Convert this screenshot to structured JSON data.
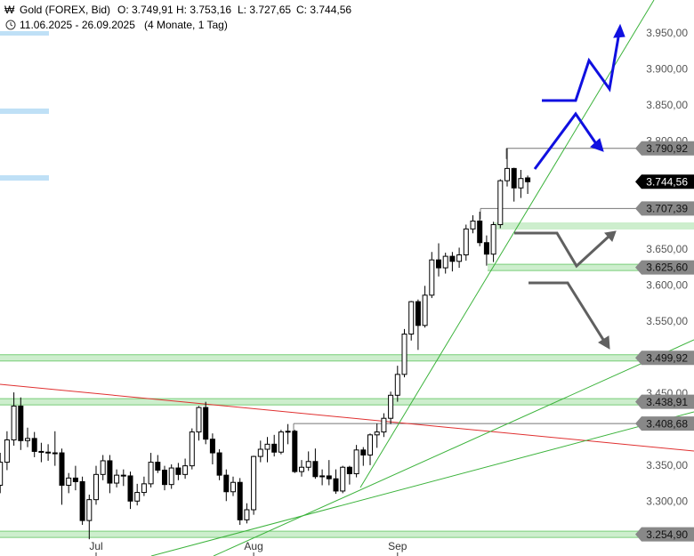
{
  "chart_data": {
    "type": "candlestick",
    "title": "Gold (FOREX, Bid)",
    "ohlc_labels": [
      "O: 3.749,91",
      "H: 3.753,16",
      "L: 3.727,65",
      "C: 3.744,56"
    ],
    "subtitle": "11.06.2025 - 26.09.2025",
    "period": "(4 Monate, 1 Tag)",
    "categories": [
      null,
      null,
      null,
      null,
      null,
      null,
      null,
      null,
      null,
      null,
      null,
      null,
      null,
      null,
      "Jul",
      null,
      null,
      null,
      null,
      null,
      null,
      null,
      null,
      null,
      null,
      null,
      null,
      null,
      null,
      null,
      null,
      null,
      null,
      null,
      null,
      null,
      null,
      "Aug",
      null,
      null,
      null,
      null,
      null,
      null,
      null,
      null,
      null,
      null,
      null,
      null,
      null,
      null,
      null,
      null,
      null,
      null,
      null,
      null,
      "Sep",
      null,
      null,
      null,
      null,
      null,
      null,
      null,
      null,
      null,
      null,
      null,
      null,
      null,
      null,
      null,
      null,
      null,
      null,
      null
    ],
    "open": [
      3323,
      3355,
      3386,
      3433,
      3385,
      3388,
      3370,
      3369,
      3368,
      3368,
      3323,
      3333,
      3328,
      3274,
      3303,
      3338,
      3357,
      3326,
      3337,
      3336,
      3301,
      3313,
      3325,
      3355,
      3344,
      3324,
      3347,
      3338,
      3350,
      3397,
      3431,
      3387,
      3368,
      3337,
      3314,
      3327,
      3275,
      3289,
      3363,
      3373,
      3380,
      3369,
      3397,
      3398,
      3342,
      3348,
      3356,
      3335,
      3336,
      3332,
      3315,
      3348,
      3339,
      3372,
      3365,
      3393,
      3397,
      3416,
      3448,
      3477,
      3533,
      3578,
      3545,
      3587,
      3636,
      3625,
      3641,
      3634,
      3643,
      3679,
      3690,
      3660,
      3644,
      3685,
      3746,
      3763,
      3736,
      3749.91
    ],
    "high": [
      3368,
      3398,
      3452,
      3445,
      3403,
      3397,
      3382,
      3380,
      3398,
      3374,
      3340,
      3350,
      3335,
      3310,
      3350,
      3365,
      3365,
      3345,
      3345,
      3342,
      3325,
      3335,
      3368,
      3365,
      3350,
      3352,
      3354,
      3360,
      3402,
      3433,
      3438.91,
      3395,
      3373,
      3345,
      3335,
      3333,
      3298,
      3364,
      3385,
      3390,
      3393,
      3400,
      3408,
      3400,
      3358,
      3370,
      3374,
      3345,
      3358,
      3345,
      3350,
      3350,
      3379,
      3376,
      3395,
      3408.68,
      3423,
      3453,
      3489,
      3540,
      3579,
      3581,
      3600,
      3647,
      3659,
      3646,
      3647,
      3653,
      3685,
      3698,
      3703,
      3670,
      3689,
      3748,
      3790.92,
      3764,
      3761,
      3753.16
    ],
    "low": [
      3312,
      3344,
      3378,
      3372,
      3376,
      3362,
      3355,
      3357,
      3350,
      3296,
      3312,
      3316,
      3268,
      3248,
      3296,
      3330,
      3312,
      3320,
      3322,
      3290,
      3295,
      3308,
      3320,
      3340,
      3316,
      3318,
      3330,
      3332,
      3345,
      3385,
      3380,
      3352,
      3330,
      3301,
      3308,
      3268,
      3270,
      3282,
      3355,
      3355,
      3363,
      3366,
      3380,
      3340,
      3335,
      3343,
      3332,
      3323,
      3323,
      3311,
      3312,
      3324,
      3334,
      3350,
      3351,
      3375,
      3390,
      3408,
      3439,
      3473,
      3524,
      3511,
      3542,
      3583,
      3613,
      3617,
      3620,
      3625,
      3635,
      3673,
      3655,
      3628,
      3633,
      3680,
      3738,
      3717,
      3722,
      3727.65
    ],
    "close": [
      3355,
      3386,
      3433,
      3385,
      3388,
      3370,
      3369,
      3368,
      3368,
      3323,
      3333,
      3328,
      3274,
      3303,
      3338,
      3357,
      3326,
      3337,
      3336,
      3301,
      3313,
      3325,
      3355,
      3344,
      3324,
      3347,
      3338,
      3350,
      3397,
      3431,
      3387,
      3368,
      3337,
      3314,
      3327,
      3275,
      3289,
      3363,
      3373,
      3380,
      3369,
      3397,
      3398,
      3342,
      3348,
      3356,
      3335,
      3336,
      3332,
      3315,
      3348,
      3339,
      3372,
      3365,
      3393,
      3397,
      3416,
      3448,
      3477,
      3533,
      3578,
      3545,
      3587,
      3636,
      3625,
      3641,
      3634,
      3643,
      3679,
      3690,
      3660,
      3644,
      3685,
      3746,
      3763,
      3736,
      3749,
      3744.56
    ],
    "colors": {
      "up": "#ffffff",
      "down": "#000000"
    },
    "ylim": [
      3245,
      3997
    ],
    "yticks": [
      {
        "value": 3950,
        "label": "3.950,00"
      },
      {
        "value": 3900,
        "label": "3.900,00"
      },
      {
        "value": 3850,
        "label": "3.850,00"
      },
      {
        "value": 3800,
        "label": "3.800,00"
      },
      {
        "value": 3650,
        "label": "3.650,00"
      },
      {
        "value": 3600,
        "label": "3.600,00"
      },
      {
        "value": 3550,
        "label": "3.550,00"
      },
      {
        "value": 3450,
        "label": "3.450,00"
      },
      {
        "value": 3350,
        "label": "3.350,00"
      },
      {
        "value": 3300,
        "label": "3.300,00"
      }
    ],
    "levels": [
      {
        "value": 3790.92,
        "label": "3.790,92"
      },
      {
        "value": 3744.56,
        "label": "3.744,56"
      },
      {
        "value": 3707.39,
        "label": "3.707,39"
      },
      {
        "value": 3625.6,
        "label": "3.625,60"
      },
      {
        "value": 3499.92,
        "label": "3.499,92"
      },
      {
        "value": 3438.91,
        "label": "3.438,91"
      },
      {
        "value": 3408.68,
        "label": "3.408,68"
      },
      {
        "value": 3254.9,
        "label": "3.254,90"
      }
    ]
  }
}
